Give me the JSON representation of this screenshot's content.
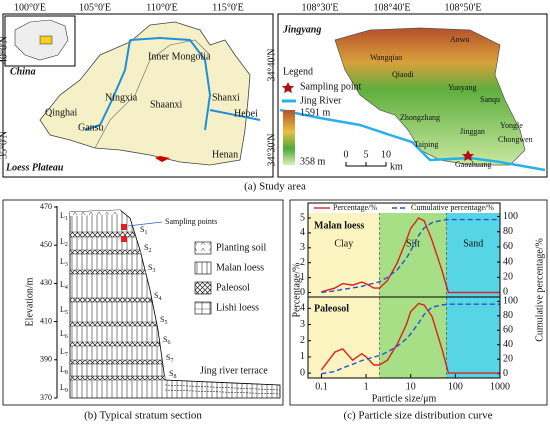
{
  "panel_a": {
    "caption": "(a) Study area",
    "left_map": {
      "x_labels": [
        "100°0'E",
        "105°0'E",
        "110°0'E",
        "115°0'E"
      ],
      "y_labels": [
        "40°0'N",
        "35°0'N"
      ],
      "inset_label": "China",
      "title": "Loess Plateau",
      "places": [
        "Inner Mongolia",
        "Ningxia",
        "Shaanxi",
        "Shanxi",
        "Hebei",
        "Qinghai",
        "Gansu",
        "Henan"
      ]
    },
    "right_map": {
      "x_labels": [
        "108°30'E",
        "108°40'E",
        "108°50'E"
      ],
      "y_labels": [
        "34°40'N",
        "34°30'N"
      ],
      "title": "Jingyang",
      "legend": {
        "title": "Legend",
        "items": [
          "Sampling point",
          "Jing River"
        ],
        "elev_max": "1591 m",
        "elev_min": "358 m"
      },
      "scale": {
        "ticks": [
          "0",
          "5",
          "10"
        ],
        "unit": "km"
      },
      "places": [
        "Anwu",
        "Wangqiao",
        "Qiaodi",
        "Yunyang",
        "Sanqu",
        "Zhongzhang",
        "Jinggan",
        "Yongle",
        "Chongwen",
        "Taiping",
        "Gaozhuang"
      ]
    }
  },
  "panel_b": {
    "caption": "(b) Typical stratum section",
    "y_label": "Elevation/m",
    "y_ticks": [
      470,
      450,
      430,
      410,
      390,
      370
    ],
    "loess_layers": [
      "L",
      "L",
      "L",
      "L",
      "L",
      "L",
      "L",
      "L",
      "L"
    ],
    "loess_index": [
      "1",
      "2",
      "3",
      "4",
      "5",
      "6",
      "7",
      "8",
      "9"
    ],
    "paleosol_layers": [
      "S",
      "S",
      "S",
      "S",
      "S",
      "S",
      "S",
      "S"
    ],
    "paleosol_index": [
      "1",
      "2",
      "3",
      "4",
      "5",
      "6",
      "7",
      "8"
    ],
    "sampling_label": "Sampling points",
    "terrace_label": "Jing river terrace",
    "legend": [
      "Planting soil",
      "Malan loess",
      "Paleosol",
      "Lishi loess"
    ]
  },
  "panel_c": {
    "caption": "(c) Particle size distribution curve",
    "x_label": "Particle size/μm",
    "y_label": "Percentage/%",
    "y2_label": "Cumulative percentage/%"
  },
  "chart_data": [
    {
      "type": "line",
      "title": "Malan loess",
      "x": [
        0.1,
        0.2,
        0.3,
        0.5,
        0.8,
        1,
        1.5,
        2,
        3,
        5,
        8,
        10,
        15,
        20,
        30,
        50,
        70,
        100,
        1000
      ],
      "series": [
        {
          "name": "Percentage/%",
          "color": "#e0201b",
          "values": [
            0.05,
            0.3,
            0.6,
            0.5,
            0.7,
            0.6,
            0.3,
            0.3,
            0.8,
            2,
            3.5,
            4.3,
            5,
            4.8,
            3.5,
            1.5,
            0,
            0,
            0
          ]
        },
        {
          "name": "Cumulative percentage/%",
          "color": "#2550d8",
          "axis": "y2",
          "values": [
            0,
            2,
            4,
            6,
            8,
            10,
            12,
            14,
            20,
            30,
            45,
            55,
            75,
            85,
            92,
            95,
            96,
            96,
            96
          ]
        }
      ],
      "ylim": [
        -0.3,
        5.4
      ],
      "yticks": [
        0,
        1,
        2,
        3,
        4,
        5
      ],
      "y2lim": [
        -6,
        106
      ],
      "y2ticks": [
        0,
        20,
        40,
        60,
        80,
        100
      ],
      "regions": [
        {
          "name": "Clay",
          "start": 0.05,
          "end": 2,
          "color": "#fbf3c0"
        },
        {
          "name": "Silt",
          "start": 2,
          "end": 63,
          "color": "#a6df86"
        },
        {
          "name": "Sand",
          "start": 63,
          "end": 1000,
          "color": "#55d5e6"
        }
      ]
    },
    {
      "type": "line",
      "title": "Paleosol",
      "x": [
        0.1,
        0.2,
        0.3,
        0.5,
        0.8,
        1,
        1.5,
        2,
        3,
        5,
        8,
        10,
        15,
        20,
        30,
        50,
        70,
        100,
        1000
      ],
      "series": [
        {
          "color": "#e0201b",
          "values": [
            0.2,
            1.3,
            1.5,
            0.8,
            1.2,
            1,
            0.5,
            0.5,
            0.8,
            1.8,
            3,
            3.8,
            4.3,
            4.2,
            3.5,
            1.5,
            0,
            0,
            0
          ]
        },
        {
          "color": "#2550d8",
          "axis": "y2",
          "values": [
            0,
            3,
            8,
            13,
            18,
            20,
            23,
            25,
            30,
            38,
            48,
            55,
            70,
            82,
            92,
            95,
            96,
            96,
            96
          ]
        }
      ],
      "ylim": [
        -0.3,
        4.7
      ],
      "yticks": [
        0,
        1,
        2,
        3,
        4
      ],
      "y2lim": [
        -6,
        106
      ],
      "y2ticks": [
        0,
        20,
        40,
        60,
        80,
        100
      ],
      "xlim": [
        0.05,
        1000
      ],
      "xticks": [
        0.1,
        1,
        10,
        100,
        1000
      ],
      "log_x": true
    }
  ]
}
